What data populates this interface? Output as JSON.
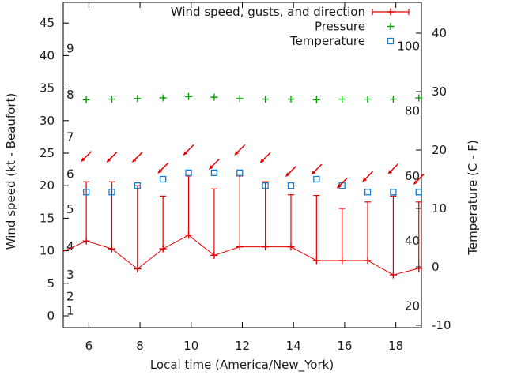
{
  "chart_data": {
    "type": "line",
    "title": "",
    "grid": false,
    "legend_position": "top-right-inside",
    "x_axis": {
      "label": "Local time (America/New_York)",
      "range": [
        5,
        19
      ],
      "ticks": [
        6,
        8,
        10,
        12,
        14,
        16,
        18
      ]
    },
    "y_left": {
      "label": "Wind speed (kt - Beaufort)",
      "range": [
        -1.8,
        48.2
      ],
      "ticks": [
        0,
        5,
        10,
        15,
        20,
        25,
        30,
        35,
        40,
        45
      ]
    },
    "y_right": {
      "label": "Temperature (C - F)",
      "range": [
        -10.4,
        45.4
      ],
      "ticks": [
        -10,
        0,
        10,
        20,
        30,
        40
      ]
    },
    "beaufort_scale_labels": [
      {
        "beaufort": "1",
        "at_kt": 0.8
      },
      {
        "beaufort": "2",
        "at_kt": 3.0
      },
      {
        "beaufort": "3",
        "at_kt": 6.3
      },
      {
        "beaufort": "4",
        "at_kt": 10.7
      },
      {
        "beaufort": "5",
        "at_kt": 16.4
      },
      {
        "beaufort": "6",
        "at_kt": 21.8
      },
      {
        "beaufort": "7",
        "at_kt": 27.5
      },
      {
        "beaufort": "8",
        "at_kt": 34.0
      },
      {
        "beaufort": "9",
        "at_kt": 41.1
      }
    ],
    "fahrenheit_scale_labels": [
      20,
      40,
      60,
      80,
      100
    ],
    "x_hours": [
      5.9,
      6.9,
      7.9,
      8.9,
      9.9,
      10.9,
      11.9,
      12.9,
      13.9,
      14.9,
      15.9,
      16.9,
      17.9,
      18.9
    ],
    "series": [
      {
        "name": "Wind speed, gusts, and direction",
        "type": "line-with-gust-errorbars-and-direction-arrows",
        "color": "#e60000",
        "wind_kt": [
          11.5,
          10.3,
          7.2,
          10.3,
          12.4,
          9.3,
          10.6,
          10.6,
          10.6,
          8.5,
          8.5,
          8.5,
          6.3,
          7.3
        ],
        "gust_kt": [
          20.6,
          20.6,
          20.0,
          18.4,
          21.5,
          19.5,
          21.5,
          20.6,
          18.6,
          18.5,
          16.5,
          17.5,
          18.4,
          17.5
        ],
        "direction_arrow_height_kt": [
          24.5,
          24.4,
          24.4,
          22.7,
          25.5,
          23.3,
          25.5,
          24.3,
          22.2,
          22.5,
          20.4,
          21.4,
          22.6,
          21.0
        ],
        "direction": "down-left (wind from NE)",
        "edge_left": {
          "t": 5.0,
          "kt": 9.9
        },
        "edge_right": {
          "t": 19.0,
          "kt": 7.4
        }
      },
      {
        "name": "Pressure",
        "type": "points",
        "color": "#00a400",
        "plotted_height_left_axis_kt": [
          33.2,
          33.3,
          33.4,
          33.5,
          33.7,
          33.6,
          33.4,
          33.3,
          33.3,
          33.2,
          33.3,
          33.3,
          33.3,
          33.5
        ]
      },
      {
        "name": "Temperature",
        "type": "points",
        "color": "#0e7fd8",
        "temperature_c": [
          12.8,
          12.8,
          13.9,
          15.0,
          16.1,
          16.1,
          16.1,
          13.9,
          13.9,
          15.0,
          13.9,
          12.8,
          12.8,
          12.8
        ]
      }
    ],
    "legend": {
      "entries": [
        {
          "label": "Wind speed, gusts, and direction",
          "sample": "errorbar",
          "color": "#e60000"
        },
        {
          "label": "Pressure",
          "sample": "plus",
          "color": "#00a400"
        },
        {
          "label": "Temperature",
          "sample": "square",
          "color": "#0e7fd8"
        }
      ]
    }
  },
  "colors": {
    "axis": "#000000",
    "text": "#1a1a1a",
    "background": "#ffffff"
  }
}
